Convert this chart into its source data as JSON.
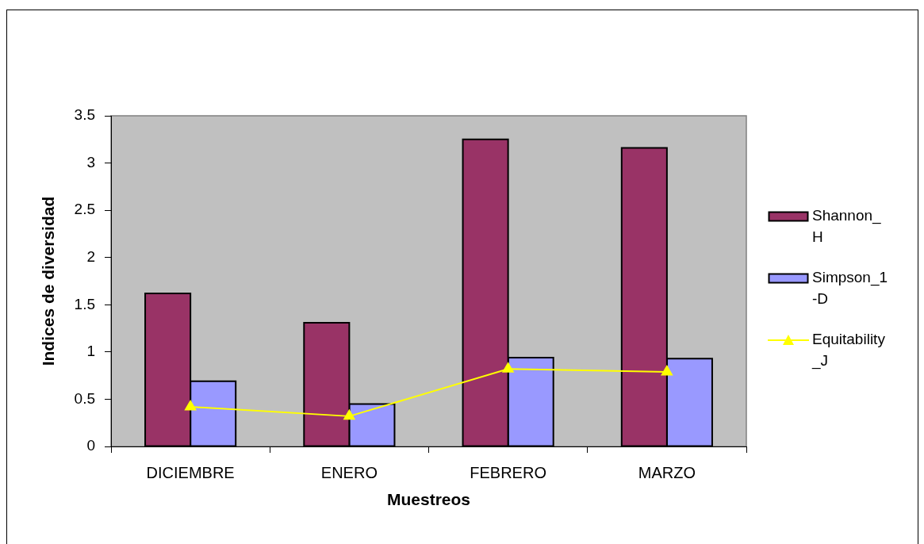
{
  "chart_data": {
    "type": "bar",
    "xlabel": "Muestreos",
    "ylabel": "Indices de diversidad",
    "categories": [
      "DICIEMBRE",
      "ENERO",
      "FEBRERO",
      "MARZO"
    ],
    "series": [
      {
        "name": "Shannon_H",
        "color": "#993366",
        "values": [
          1.62,
          1.31,
          3.25,
          3.16
        ]
      },
      {
        "name": "Simpson_1-D",
        "color": "#9999ff",
        "values": [
          0.69,
          0.45,
          0.94,
          0.93
        ]
      },
      {
        "name": "Equitability_J",
        "type": "line",
        "color": "#ffff00",
        "values": [
          0.42,
          0.32,
          0.82,
          0.79
        ]
      }
    ],
    "ylim": [
      0,
      3.5
    ],
    "yticks": [
      0,
      0.5,
      1,
      1.5,
      2,
      2.5,
      3,
      3.5
    ],
    "legend": "right",
    "marker": "triangle",
    "line_style": "solid"
  }
}
